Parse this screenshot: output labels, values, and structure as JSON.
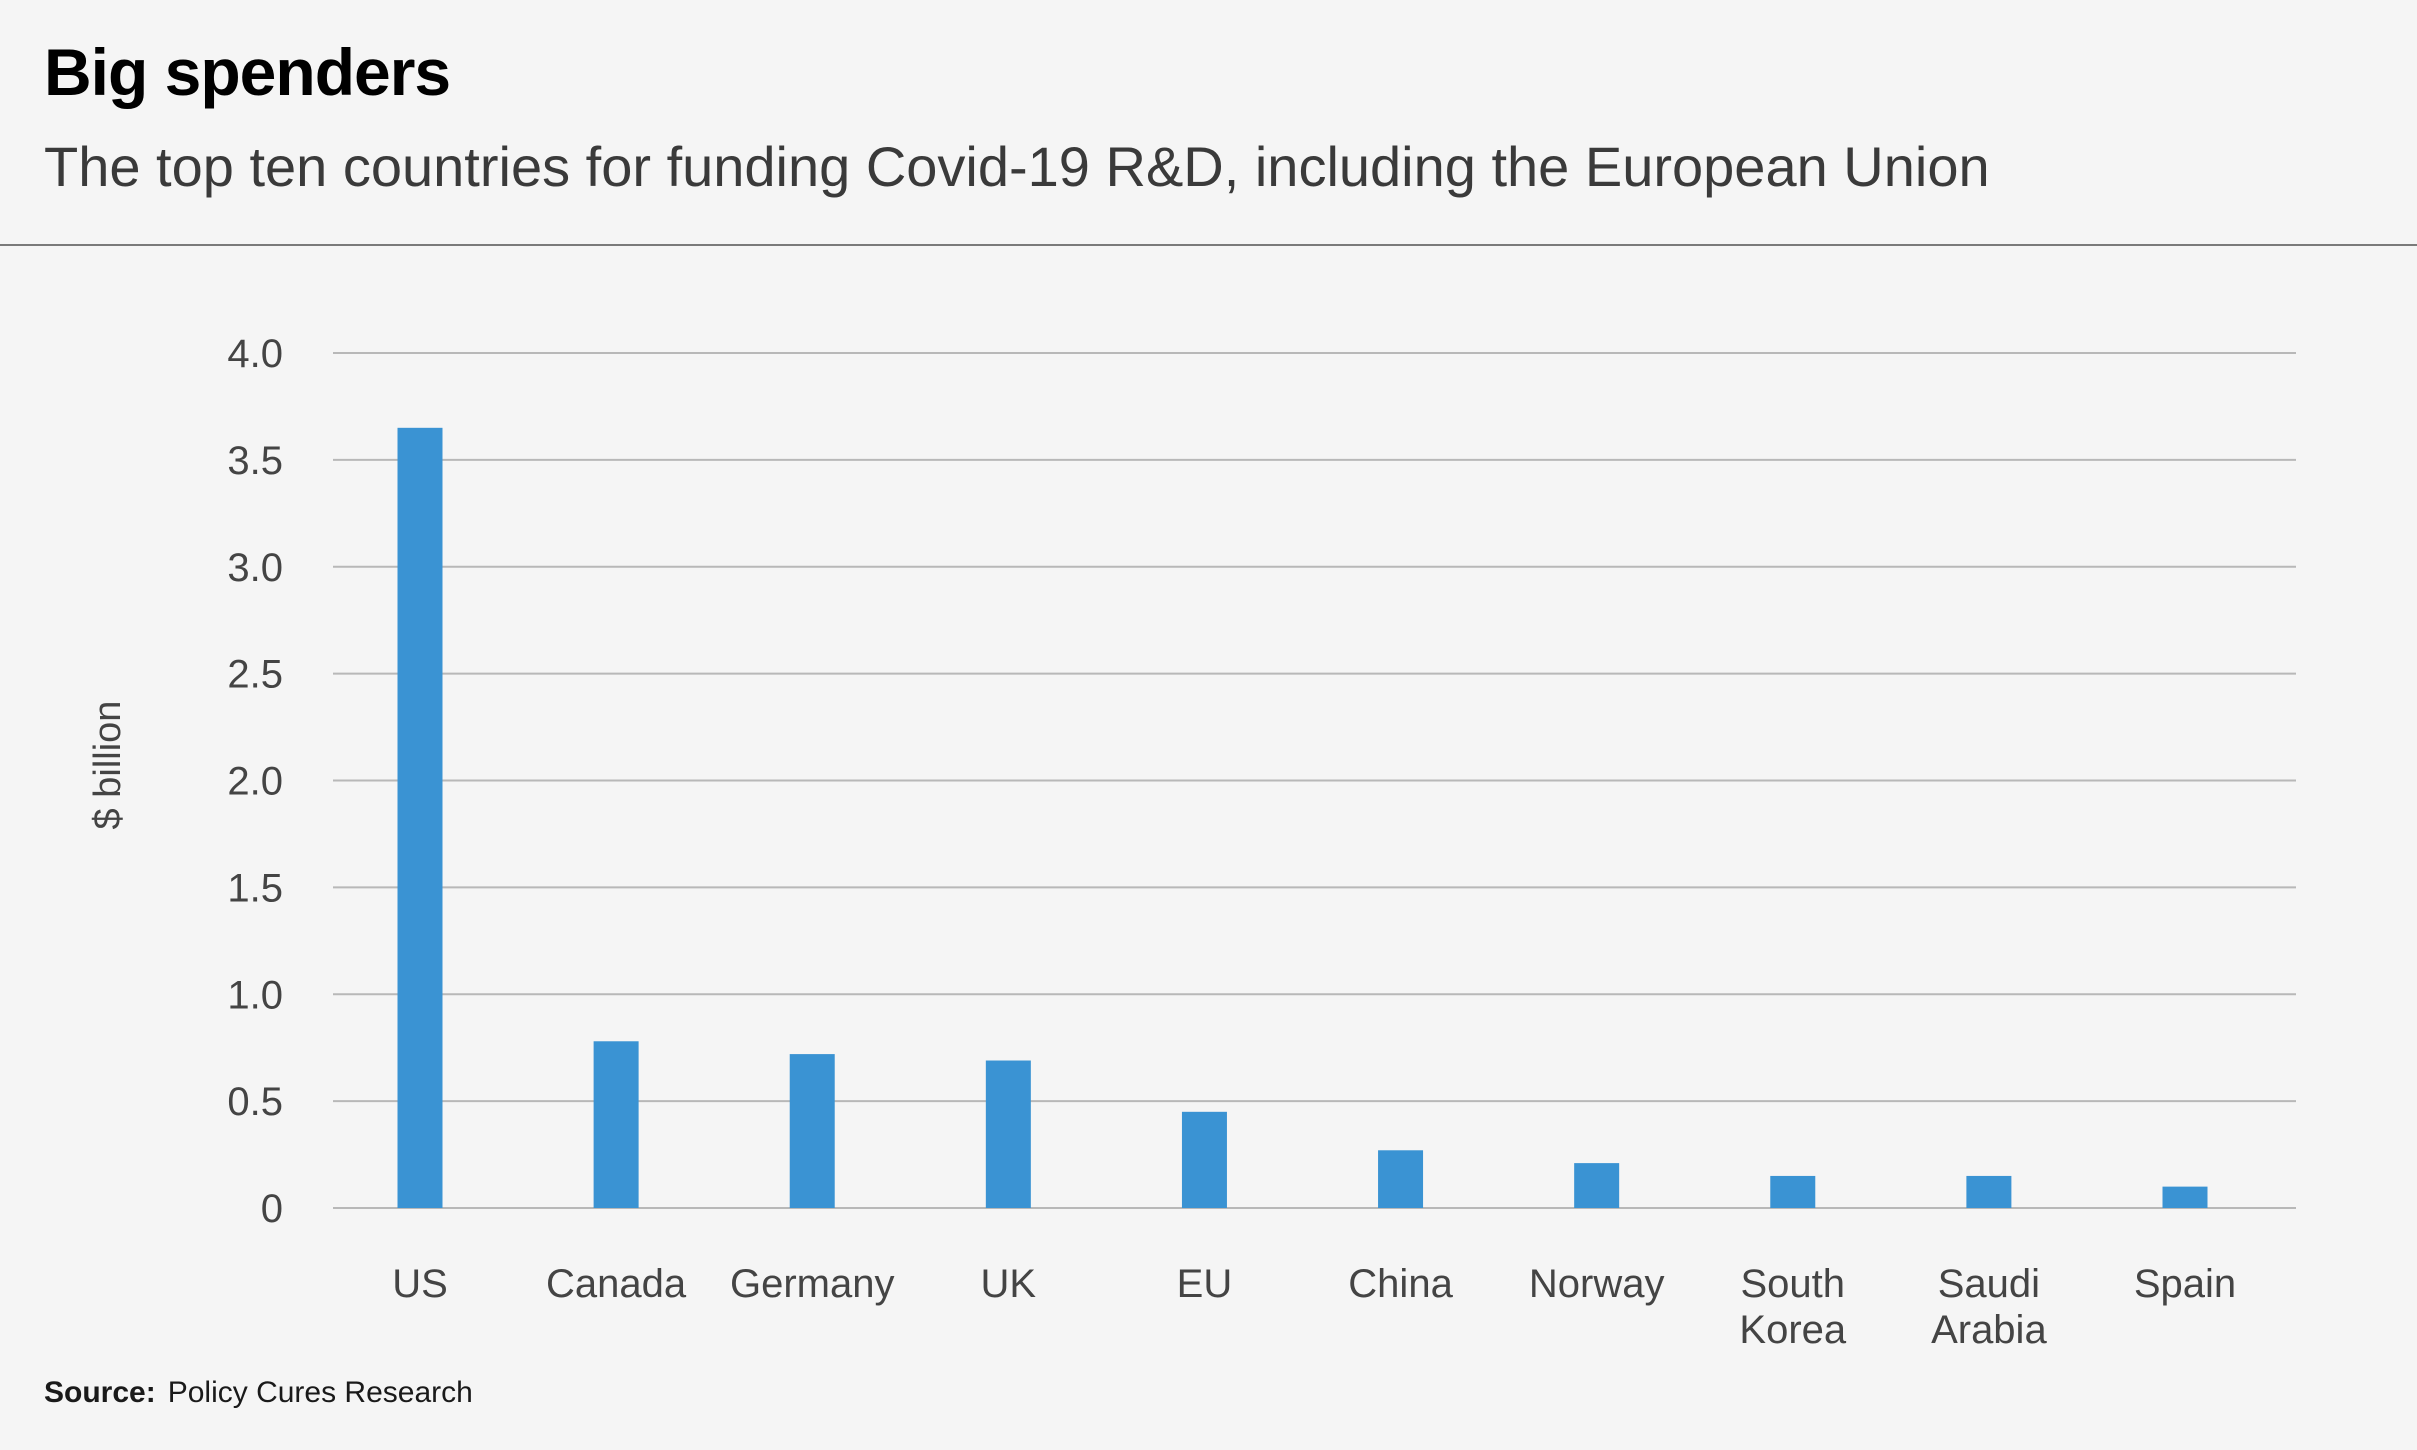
{
  "header": {
    "title": "Big spenders",
    "subtitle": "The top ten countries for funding Covid-19 R&D, including the European Union"
  },
  "footer": {
    "source_label": "Source:",
    "source_text": "Policy Cures Research"
  },
  "colors": {
    "bar": "#3a93d3",
    "grid": "#b8b8b8",
    "axis_text": "#444444",
    "background": "#f5f5f5"
  },
  "chart_data": {
    "type": "bar",
    "title": "Big spenders",
    "subtitle": "The top ten countries for funding Covid-19 R&D, including the European Union",
    "xlabel": "",
    "ylabel": "$ billion",
    "ylim": [
      0,
      4.0
    ],
    "yticks": [
      0,
      0.5,
      1.0,
      1.5,
      2.0,
      2.5,
      3.0,
      3.5,
      4.0
    ],
    "ytick_labels": [
      "0",
      "0.5",
      "1.0",
      "1.5",
      "2.0",
      "2.5",
      "3.0",
      "3.5",
      "4.0"
    ],
    "grid": true,
    "legend": "none",
    "categories": [
      [
        "US"
      ],
      [
        "Canada"
      ],
      [
        "Germany"
      ],
      [
        "UK"
      ],
      [
        "EU"
      ],
      [
        "China"
      ],
      [
        "Norway"
      ],
      [
        "South",
        "Korea"
      ],
      [
        "Saudi",
        "Arabia"
      ],
      [
        "Spain"
      ]
    ],
    "values": [
      3.65,
      0.78,
      0.72,
      0.69,
      0.45,
      0.27,
      0.21,
      0.15,
      0.15,
      0.1
    ]
  }
}
